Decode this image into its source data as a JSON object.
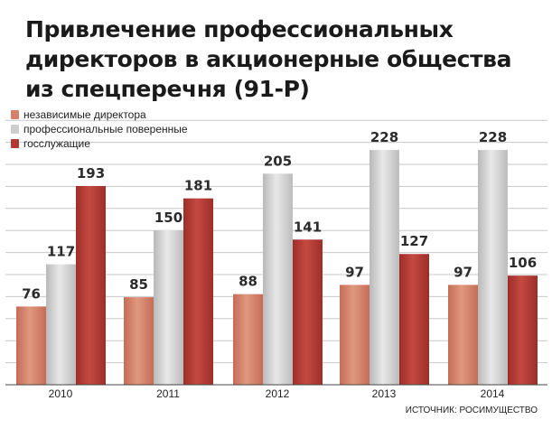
{
  "chart_data": {
    "type": "bar",
    "title": "Привлечение профессиональных директоров в акционерные общества из спецперечня (91-Р)",
    "categories": [
      "2010",
      "2011",
      "2012",
      "2013",
      "2014"
    ],
    "series": [
      {
        "name": "независимые директора",
        "color": "#d4806a",
        "values": [
          76,
          85,
          88,
          97,
          97
        ]
      },
      {
        "name": "профессиональные поверенные",
        "color": "#cdcdcd",
        "values": [
          117,
          150,
          205,
          228,
          228
        ]
      },
      {
        "name": "госслужащие",
        "color": "#b23a33",
        "values": [
          193,
          181,
          141,
          127,
          106
        ]
      }
    ],
    "ylim": [
      0,
      250
    ],
    "grid": true,
    "legend_position": "top-left",
    "source": "ИСТОЧНИК: РОСИМУЩЕСТВО"
  }
}
